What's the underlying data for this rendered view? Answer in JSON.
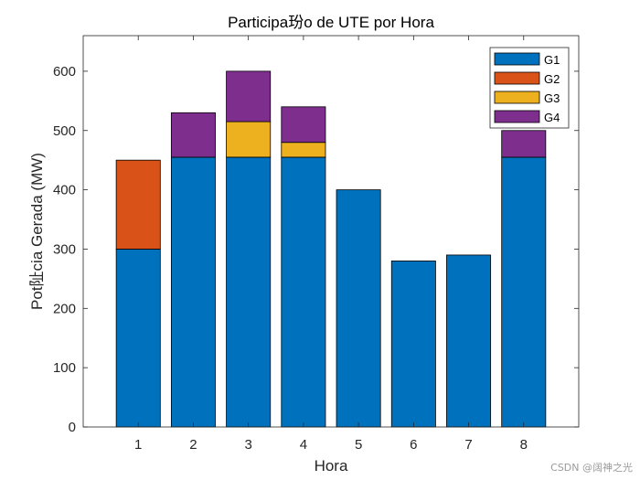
{
  "chart_data": {
    "type": "bar",
    "stacked": true,
    "title": "Participa玢o de UTE por Hora",
    "xlabel": "Hora",
    "ylabel": "Pot阯cia Gerada (MW)",
    "categories": [
      "1",
      "2",
      "3",
      "4",
      "5",
      "6",
      "7",
      "8"
    ],
    "ylim": [
      0,
      660
    ],
    "yticks": [
      0,
      100,
      200,
      300,
      400,
      500,
      600
    ],
    "series": [
      {
        "name": "G1",
        "color": "#0072BD",
        "values": [
          300,
          455,
          455,
          455,
          400,
          280,
          290,
          455
        ]
      },
      {
        "name": "G2",
        "color": "#D95319",
        "values": [
          150,
          0,
          0,
          0,
          0,
          0,
          0,
          0
        ]
      },
      {
        "name": "G3",
        "color": "#EDB120",
        "values": [
          0,
          0,
          60,
          25,
          0,
          0,
          0,
          0
        ]
      },
      {
        "name": "G4",
        "color": "#7E2F8E",
        "values": [
          0,
          75,
          85,
          60,
          0,
          0,
          0,
          45
        ]
      }
    ],
    "legend_position": "top-right",
    "grid": false
  },
  "watermark": "CSDN @阔神之光"
}
